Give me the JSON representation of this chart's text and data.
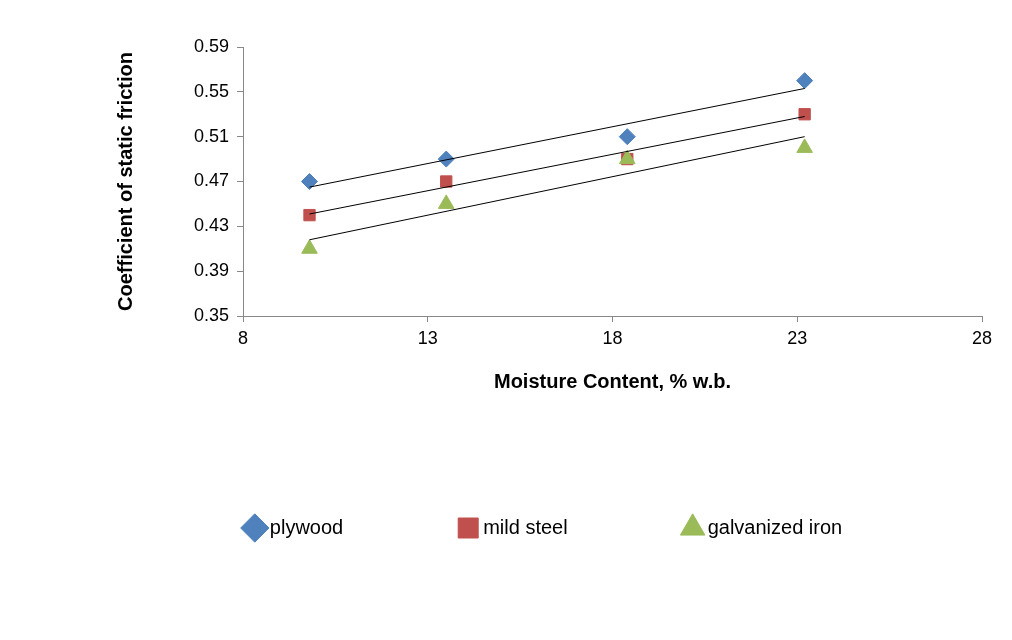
{
  "chart_data": {
    "type": "scatter",
    "xlabel": "Moisture Content, % w.b.",
    "ylabel": "Coefficient of static friction",
    "xlim": [
      8,
      28
    ],
    "xticks": [
      8,
      13,
      18,
      23,
      28
    ],
    "ylim": [
      0.35,
      0.59
    ],
    "yticks": [
      0.35,
      0.39,
      0.43,
      0.47,
      0.51,
      0.55,
      0.59
    ],
    "grid": false,
    "legend": "bottom",
    "series": [
      {
        "name": "plywood",
        "color": "#4f81bd",
        "marker": "diamond",
        "x": [
          9.8,
          13.5,
          18.4,
          23.2
        ],
        "values": [
          0.47,
          0.49,
          0.51,
          0.56
        ]
      },
      {
        "name": "mild steel",
        "color": "#c0504d",
        "marker": "square",
        "x": [
          9.8,
          13.5,
          18.4,
          23.2
        ],
        "values": [
          0.44,
          0.47,
          0.49,
          0.53
        ]
      },
      {
        "name": "galvanized iron",
        "color": "#9bbb59",
        "marker": "triangle",
        "x": [
          9.8,
          13.5,
          18.4,
          23.2
        ],
        "values": [
          0.41,
          0.45,
          0.49,
          0.5
        ]
      },
      {
        "type": "line",
        "color": "#000000",
        "marker": "none",
        "x": [
          9.8,
          23.2
        ],
        "values": [
          0.465,
          0.553
        ]
      },
      {
        "type": "line",
        "color": "#000000",
        "marker": "none",
        "x": [
          9.8,
          23.2
        ],
        "values": [
          0.441,
          0.528
        ]
      },
      {
        "type": "line",
        "color": "#000000",
        "marker": "none",
        "x": [
          9.8,
          23.2
        ],
        "values": [
          0.418,
          0.51
        ]
      }
    ]
  }
}
